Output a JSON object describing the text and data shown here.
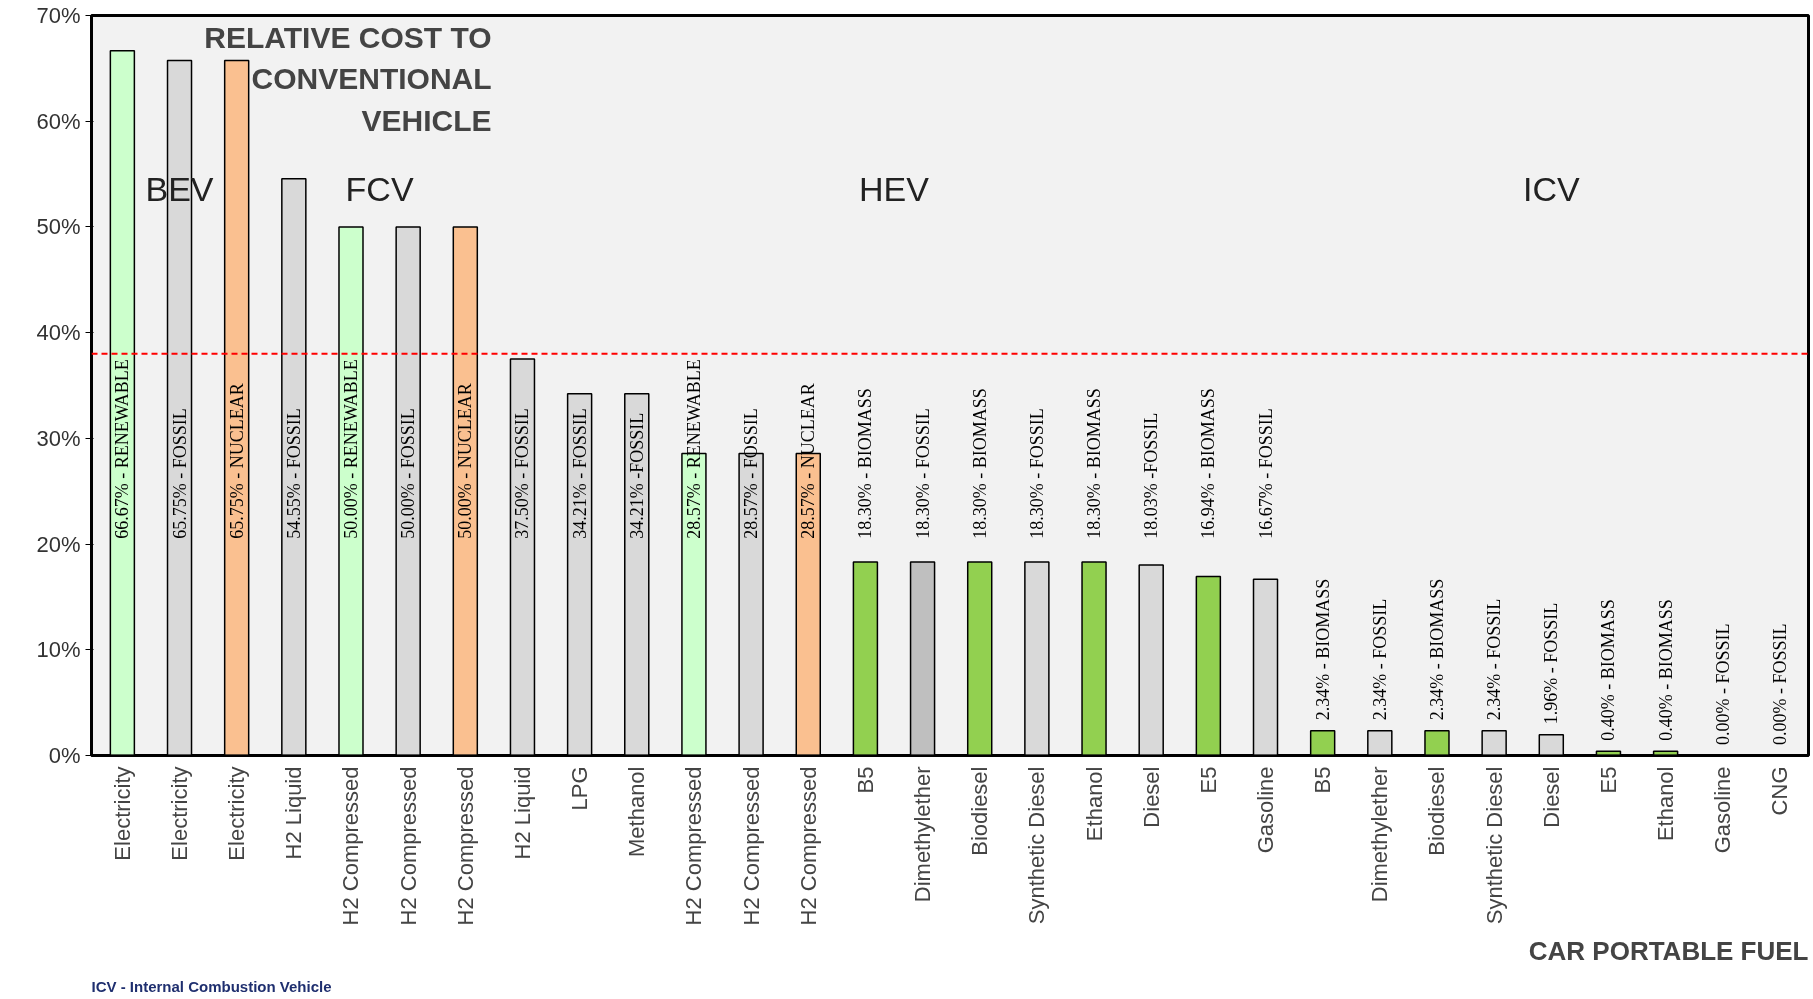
{
  "chart_data": {
    "type": "bar",
    "title": "RELATIVE COST TO CONVENTIONAL VEHICLE",
    "xlabel": "CAR PORTABLE FUEL",
    "annotations": [
      "BEV",
      "FCV",
      "HEV",
      "ICV",
      "ICV - Internal Combustion Vehicle"
    ],
    "categories": [
      "Electricity",
      "Electricity",
      "Electricity",
      "H2 Liquid",
      "H2 Compressed",
      "H2 Compressed",
      "H2 Compressed",
      "H2 Liquid",
      "LPG",
      "Methanol",
      "H2 Compressed",
      "H2 Compressed",
      "H2 Compressed",
      "B5",
      "Dimethylether",
      "Biodiesel",
      "Synthetic Diesel",
      "Ethanol",
      "Diesel",
      "E5",
      "Gasoline",
      "B5",
      "Dimethylether",
      "Biodiesel",
      "Synthetic Diesel",
      "Diesel",
      "E5",
      "Ethanol",
      "Gasoline",
      "CNG"
    ],
    "values": [
      66.67,
      65.75,
      65.75,
      54.55,
      50.0,
      50.0,
      50.0,
      37.5,
      34.21,
      34.21,
      28.57,
      28.57,
      28.57,
      18.3,
      18.3,
      18.3,
      18.3,
      18.3,
      18.03,
      16.94,
      16.67,
      2.34,
      2.34,
      2.34,
      2.34,
      1.96,
      0.4,
      0.4,
      0.0,
      0.0
    ],
    "colors": [
      "#ccffcc",
      "#d9d9d9",
      "#fac090",
      "#d9d9d9",
      "#ccffcc",
      "#d9d9d9",
      "#fac090",
      "#d9d9d9",
      "#d9d9d9",
      "#d9d9d9",
      "#ccffcc",
      "#d9d9d9",
      "#fac090",
      "#92d050",
      "#bfbfbf",
      "#92d050",
      "#d9d9d9",
      "#92d050",
      "#d9d9d9",
      "#92d050",
      "#d9d9d9",
      "#92d050",
      "#d9d9d9",
      "#92d050",
      "#d9d9d9",
      "#d9d9d9",
      "#92d050",
      "#92d050",
      "#d9d9d9",
      "#d9d9d9"
    ],
    "value_labels": [
      "66.67% - RENEWABLE",
      "65.75% - FOSSIL",
      "65.75% - NUCLEAR",
      "54.55% - FOSSIL",
      "50.00% - RENEWABLE",
      "50.00% - FOSSIL",
      "50.00% - NUCLEAR",
      "37.50% - FOSSIL",
      "34.21% - FOSSIL",
      "34.21% -FOSSIL",
      "28.57% - RENEWABLE",
      "28.57% - FOSSIL",
      "28.57% - NUCLEAR",
      "18.30% - BIOMASS",
      "18.30% - FOSSIL",
      "18.30% - BIOMASS",
      "18.30% - FOSSIL",
      "18.30% - BIOMASS",
      "18.03% -FOSSIL",
      "16.94% - BIOMASS",
      "16.67% - FOSSIL",
      "2.34% - BIOMASS",
      "2.34% - FOSSIL",
      "2.34% - BIOMASS",
      "2.34% - FOSSIL",
      "1.96% - FOSSIL",
      "0.40% - BIOMASS",
      "0.40% - BIOMASS",
      "0.00% - FOSSIL",
      "0.00% - FOSSIL"
    ],
    "ylim": [
      0,
      70
    ],
    "yticks": [
      {
        "value": 0,
        "label": "0%"
      },
      {
        "value": 10,
        "label": "10%"
      },
      {
        "value": 20,
        "label": "20%"
      },
      {
        "value": 30,
        "label": "30%"
      },
      {
        "value": 40,
        "label": "40%"
      },
      {
        "value": 50,
        "label": "50%"
      },
      {
        "value": 60,
        "label": "60%"
      },
      {
        "value": 70,
        "label": "70%"
      }
    ],
    "ref_lines": [
      {
        "axis": "y",
        "value": 38,
        "color": "#ff0000",
        "line_style": "dashed"
      }
    ]
  }
}
